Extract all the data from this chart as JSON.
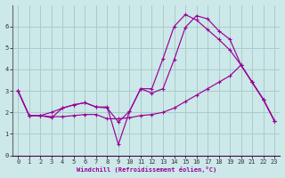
{
  "bg_color": "#cce8e8",
  "grid_color": "#aacccc",
  "line_color": "#990099",
  "xlabel": "Windchill (Refroidissement éolien,°C)",
  "xlim": [
    -0.5,
    23.5
  ],
  "ylim": [
    0,
    7
  ],
  "xticks": [
    0,
    1,
    2,
    3,
    4,
    5,
    6,
    7,
    8,
    9,
    10,
    11,
    12,
    13,
    14,
    15,
    16,
    17,
    18,
    19,
    20,
    21,
    22,
    23
  ],
  "yticks": [
    0,
    1,
    2,
    3,
    4,
    5,
    6
  ],
  "line1_x": [
    0,
    1,
    2,
    3,
    4,
    5,
    6,
    7,
    8,
    9,
    10,
    11,
    12,
    13,
    14,
    15,
    16,
    17,
    18,
    19,
    20,
    21,
    22,
    23
  ],
  "line1_y": [
    3.0,
    1.85,
    1.85,
    1.75,
    2.2,
    2.35,
    2.45,
    2.25,
    2.2,
    1.55,
    2.05,
    3.1,
    2.9,
    3.1,
    4.45,
    5.95,
    6.5,
    6.35,
    5.8,
    5.4,
    4.2,
    3.4,
    2.6,
    1.6
  ],
  "line2_x": [
    0,
    1,
    2,
    3,
    4,
    5,
    6,
    7,
    8,
    9,
    10,
    11,
    12,
    13,
    14,
    15,
    16,
    17,
    18,
    19,
    20,
    21,
    22,
    23
  ],
  "line2_y": [
    3.0,
    1.85,
    1.85,
    1.8,
    1.8,
    1.85,
    1.9,
    1.9,
    1.7,
    1.7,
    1.75,
    1.85,
    1.9,
    2.0,
    2.2,
    2.5,
    2.8,
    3.1,
    3.4,
    3.7,
    4.2,
    3.4,
    2.6,
    1.6
  ],
  "line3_x": [
    0,
    1,
    2,
    3,
    4,
    5,
    6,
    7,
    8,
    9,
    10,
    11,
    12,
    13,
    14,
    15,
    16,
    17,
    18,
    19,
    20,
    21,
    22,
    23
  ],
  "line3_y": [
    3.0,
    1.85,
    1.85,
    2.0,
    2.2,
    2.35,
    2.45,
    2.25,
    2.25,
    0.5,
    2.05,
    3.1,
    3.1,
    4.5,
    6.0,
    6.55,
    6.3,
    5.85,
    5.4,
    4.9,
    4.2,
    3.4,
    2.6,
    1.6
  ]
}
